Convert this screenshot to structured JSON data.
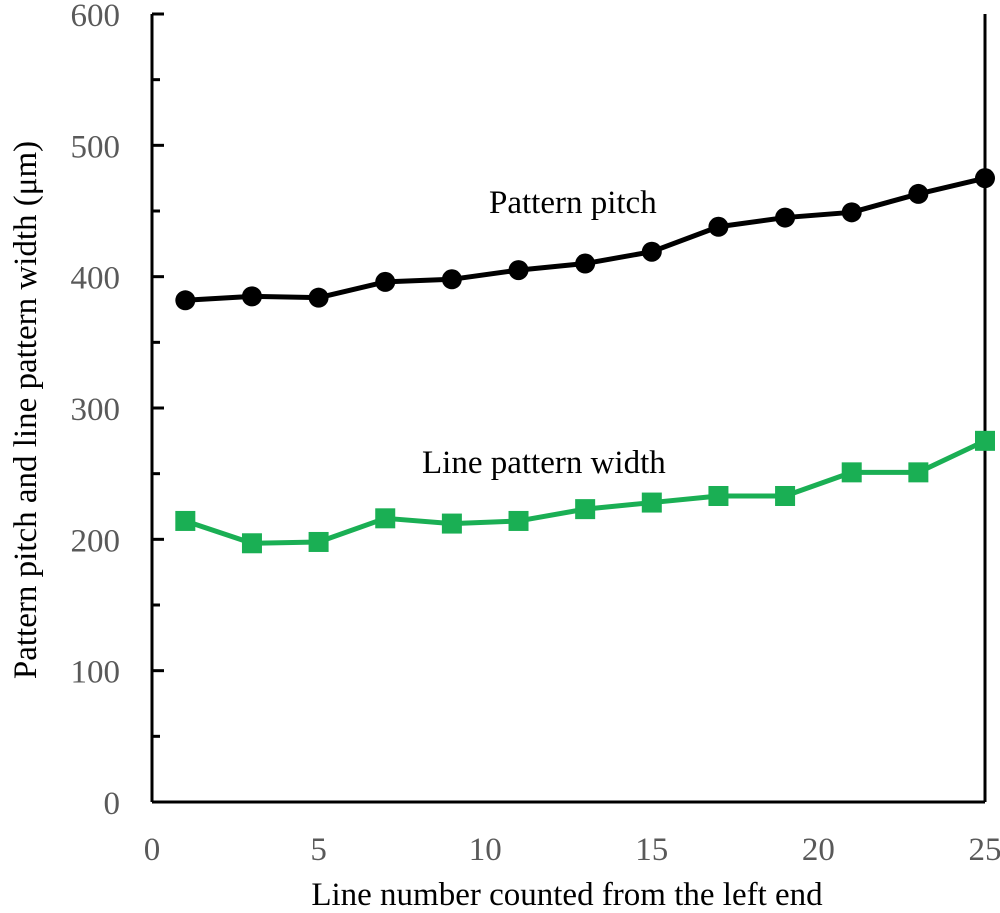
{
  "chart_data": {
    "type": "line",
    "title": "",
    "xlabel": "Line number counted from the left end",
    "ylabel": "Pattern pitch and line pattern width (μm)",
    "xlim": [
      0,
      25
    ],
    "ylim": [
      0,
      600
    ],
    "x_ticks": [
      "0",
      "5",
      "10",
      "15",
      "20",
      "25"
    ],
    "y_ticks": [
      "0",
      "100",
      "200",
      "300",
      "400",
      "500",
      "600"
    ],
    "grid": false,
    "legend": "none (series labelled by in-plot annotations)",
    "x": [
      1,
      3,
      5,
      7,
      9,
      11,
      13,
      15,
      17,
      19,
      21,
      23,
      25
    ],
    "series": [
      {
        "name": "Pattern pitch",
        "color": "#000000",
        "marker": "circle",
        "values": [
          382,
          385,
          384,
          396,
          398,
          405,
          410,
          419,
          438,
          445,
          449,
          463,
          475
        ]
      },
      {
        "name": "Line pattern width",
        "color": "#1aaf54",
        "marker": "square",
        "values": [
          214,
          197,
          198,
          216,
          212,
          214,
          223,
          228,
          233,
          233,
          251,
          251,
          275
        ]
      }
    ],
    "annotations": [
      "Pattern pitch",
      "Line pattern width"
    ]
  }
}
